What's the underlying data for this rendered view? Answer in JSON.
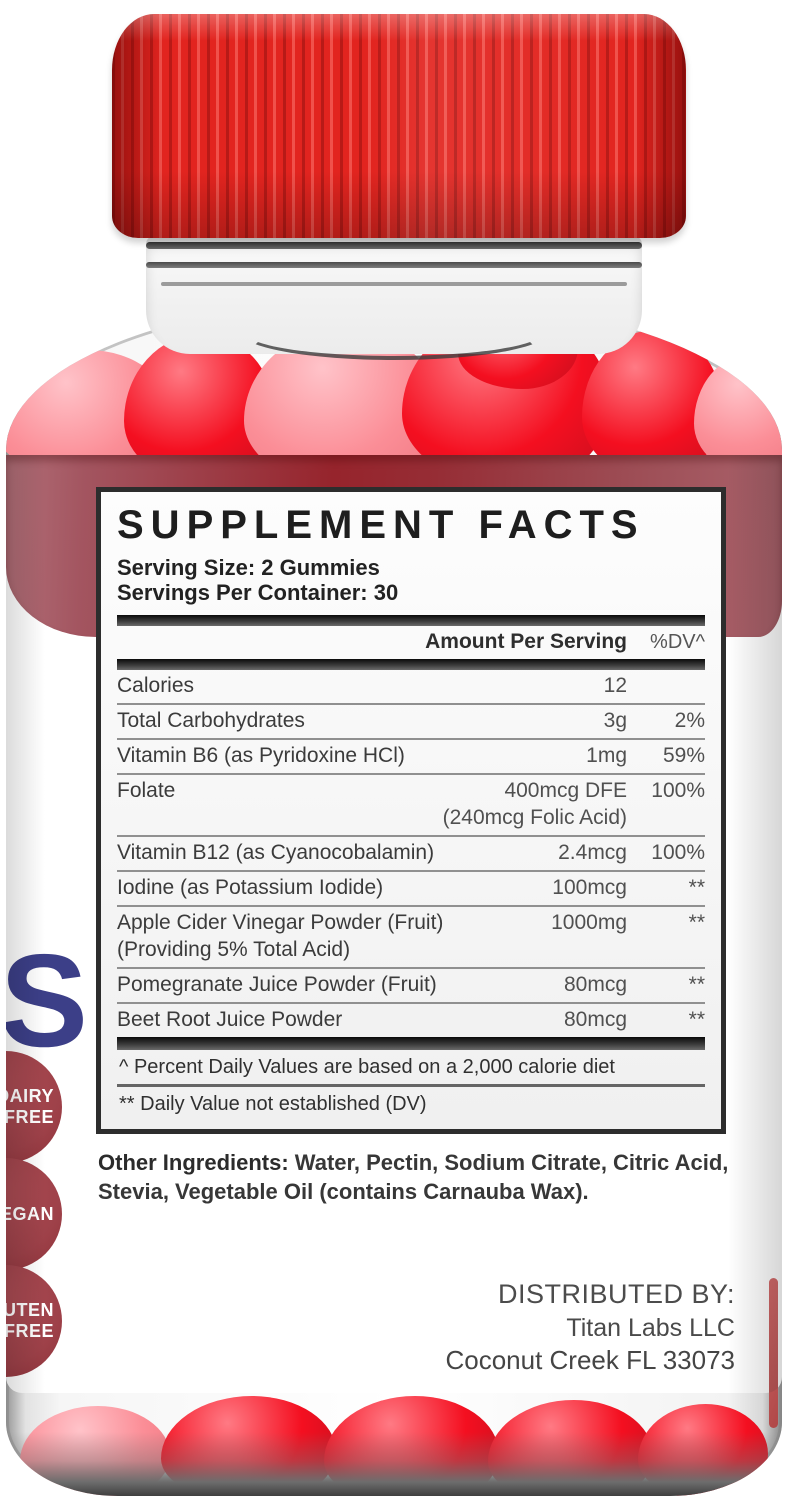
{
  "colors": {
    "cap_red": "#e2241f",
    "band_maroon": "#96242c",
    "badge_maroon": "#9e4149",
    "letter_navy": "#3c3f88",
    "gummy_red": "#f40f20",
    "gummy_pink": "#fb8e97",
    "panel_border": "#2d2d2d"
  },
  "supplement_facts": {
    "title": "SUPPLEMENT FACTS",
    "serving_size": "Serving Size: 2 Gummies",
    "servings_per_container": "Servings Per Container: 30",
    "amount_header": "Amount Per Serving",
    "dv_header": "%DV^",
    "rows": [
      {
        "name": "Calories",
        "amount": "12",
        "dv": ""
      },
      {
        "name": "Total Carbohydrates",
        "amount": "3g",
        "dv": "2%"
      },
      {
        "name": "Vitamin B6 (as Pyridoxine HCl)",
        "amount": "1mg",
        "dv": "59%"
      },
      {
        "name": "Folate",
        "amount": "400mcg DFE",
        "dv": "100%",
        "sub": "(240mcg Folic Acid)",
        "sub_align": "right"
      },
      {
        "name": "Vitamin B12 (as Cyanocobalamin)",
        "amount": "2.4mcg",
        "dv": "100%"
      },
      {
        "name": "Iodine (as Potassium Iodide)",
        "amount": "100mcg",
        "dv": "**"
      },
      {
        "name": "Apple Cider Vinegar Powder (Fruit)",
        "amount": "1000mg",
        "dv": "**",
        "sub": "(Providing 5% Total Acid)",
        "sub_align": "left"
      },
      {
        "name": "Pomegranate Juice Powder (Fruit)",
        "amount": "80mcg",
        "dv": "**"
      },
      {
        "name": "Beet Root Juice Powder",
        "amount": "80mcg",
        "dv": "**"
      }
    ],
    "footnotes": [
      "^ Percent Daily Values are based on a 2,000 calorie diet",
      "** Daily Value not established (DV)"
    ]
  },
  "other_ingredients": {
    "label": "Other Ingredients:",
    "text": " Water, Pectin, Sodium Citrate, Citric Acid, Stevia, Vegetable Oil (contains Carnauba Wax)."
  },
  "distributor": {
    "heading": "DISTRIBUTED BY:",
    "name": "Titan Labs LLC",
    "address": "Coconut Creek FL 33073"
  },
  "badges": [
    {
      "lines": [
        "DAIRY",
        "FREE"
      ]
    },
    {
      "lines": [
        "VEGAN"
      ]
    },
    {
      "lines": [
        "GLUTEN",
        "FREE"
      ]
    }
  ],
  "side_letter": "S"
}
